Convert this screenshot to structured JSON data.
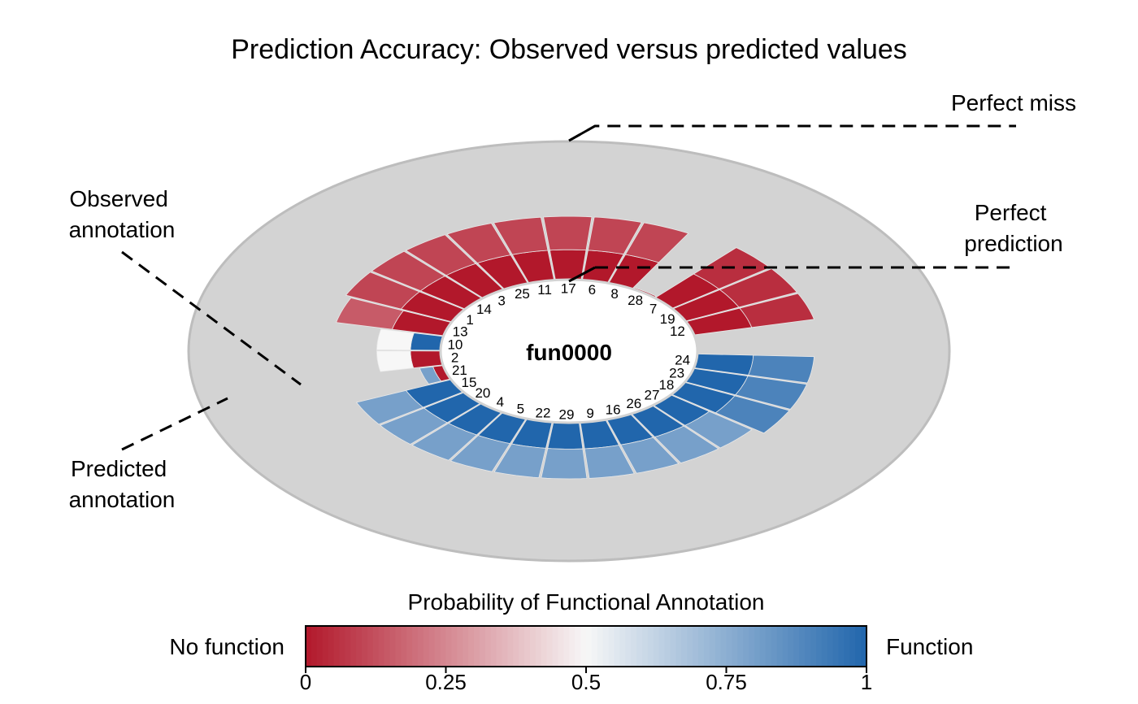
{
  "chart_data": {
    "type": "radial-segment",
    "title": "Prediction Accuracy: Observed versus predicted values",
    "center_label": "fun0000",
    "annotations": {
      "perfect_miss": "Perfect miss",
      "perfect_prediction": "Perfect prediction",
      "observed": "Observed annotation",
      "predicted": "Predicted annotation"
    },
    "legend": {
      "title": "Probability of Functional Annotation",
      "left_label": "No function",
      "right_label": "Function",
      "ticks": [
        "0",
        "0.25",
        "0.5",
        "0.75",
        "1"
      ],
      "colors": {
        "low": "#b2182b",
        "mid": "#f7f7f7",
        "high": "#2166ac"
      }
    },
    "order": [
      "24",
      "23",
      "18",
      "27",
      "26",
      "16",
      "9",
      "29",
      "22",
      "5",
      "4",
      "20",
      "15",
      "21",
      "2",
      "10",
      "13",
      "1",
      "14",
      "3",
      "25",
      "11",
      "17",
      "6",
      "8",
      "28",
      "7",
      "19",
      "12"
    ],
    "samples": [
      {
        "id": "24",
        "observed": 1,
        "predicted": 0.9
      },
      {
        "id": "23",
        "observed": 1,
        "predicted": 0.9
      },
      {
        "id": "18",
        "observed": 1,
        "predicted": 0.9
      },
      {
        "id": "27",
        "observed": 1,
        "predicted": 0.8
      },
      {
        "id": "26",
        "observed": 1,
        "predicted": 0.8
      },
      {
        "id": "16",
        "observed": 1,
        "predicted": 0.8
      },
      {
        "id": "9",
        "observed": 1,
        "predicted": 0.8
      },
      {
        "id": "29",
        "observed": 1,
        "predicted": 0.8
      },
      {
        "id": "22",
        "observed": 1,
        "predicted": 0.8
      },
      {
        "id": "5",
        "observed": 1,
        "predicted": 0.8
      },
      {
        "id": "4",
        "observed": 1,
        "predicted": 0.8
      },
      {
        "id": "20",
        "observed": 1,
        "predicted": 0.8
      },
      {
        "id": "15",
        "observed": 1,
        "predicted": 0.8
      },
      {
        "id": "21",
        "observed": 0,
        "predicted": 0.8
      },
      {
        "id": "2",
        "observed": 0,
        "predicted": 0.5
      },
      {
        "id": "10",
        "observed": 1,
        "predicted": 0.5
      },
      {
        "id": "13",
        "observed": 0,
        "predicted": 0.15
      },
      {
        "id": "1",
        "observed": 0,
        "predicted": 0.1
      },
      {
        "id": "14",
        "observed": 0,
        "predicted": 0.1
      },
      {
        "id": "3",
        "observed": 0,
        "predicted": 0.1
      },
      {
        "id": "25",
        "observed": 0,
        "predicted": 0.1
      },
      {
        "id": "11",
        "observed": 0,
        "predicted": 0.1
      },
      {
        "id": "17",
        "observed": 0,
        "predicted": 0.1
      },
      {
        "id": "6",
        "observed": 0,
        "predicted": 0.1
      },
      {
        "id": "8",
        "observed": 0,
        "predicted": 0.1
      },
      {
        "id": "28",
        "observed": 1,
        "predicted": 0.05
      },
      {
        "id": "7",
        "observed": 0,
        "predicted": 0.05
      },
      {
        "id": "19",
        "observed": 0,
        "predicted": 0.05
      },
      {
        "id": "12",
        "observed": 0,
        "predicted": 0.05
      }
    ]
  }
}
